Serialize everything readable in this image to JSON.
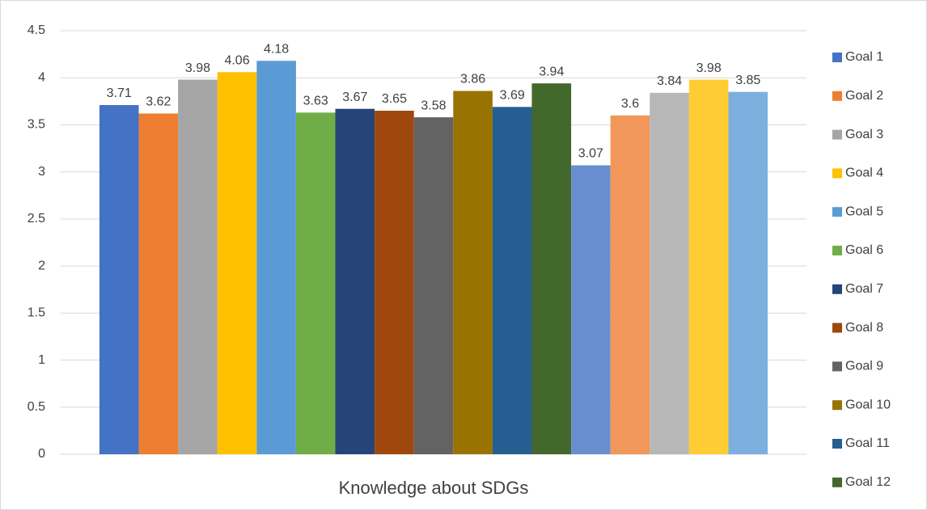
{
  "chart_data": {
    "type": "bar",
    "categories": [
      "Knowledge about SDGs"
    ],
    "series": [
      {
        "name": "Goal 1",
        "color": "#4472c4",
        "values": [
          3.71
        ]
      },
      {
        "name": "Goal 2",
        "color": "#ed7d31",
        "values": [
          3.62
        ]
      },
      {
        "name": "Goal 3",
        "color": "#a5a5a5",
        "values": [
          3.98
        ]
      },
      {
        "name": "Goal 4",
        "color": "#ffc000",
        "values": [
          4.06
        ]
      },
      {
        "name": "Goal 5",
        "color": "#5b9bd5",
        "values": [
          4.18
        ]
      },
      {
        "name": "Goal 6",
        "color": "#70ad47",
        "values": [
          3.63
        ]
      },
      {
        "name": "Goal 7",
        "color": "#264478",
        "values": [
          3.67
        ]
      },
      {
        "name": "Goal 8",
        "color": "#9e480e",
        "values": [
          3.65
        ]
      },
      {
        "name": "Goal 9",
        "color": "#636363",
        "values": [
          3.58
        ]
      },
      {
        "name": "Goal 10",
        "color": "#997300",
        "values": [
          3.86
        ]
      },
      {
        "name": "Goal 11",
        "color": "#255e91",
        "values": [
          3.69
        ]
      },
      {
        "name": "Goal 12",
        "color": "#43682b",
        "values": [
          3.94
        ]
      },
      {
        "name": null,
        "color": "#698ed0",
        "values": [
          3.07
        ]
      },
      {
        "name": null,
        "color": "#f1975a",
        "values": [
          3.6
        ]
      },
      {
        "name": null,
        "color": "#b7b7b7",
        "values": [
          3.84
        ]
      },
      {
        "name": null,
        "color": "#ffcd33",
        "values": [
          3.98
        ]
      },
      {
        "name": null,
        "color": "#7cafdd",
        "values": [
          3.85
        ]
      }
    ],
    "ylim": [
      0,
      4.5
    ],
    "yticks": [
      0,
      0.5,
      1,
      1.5,
      2,
      2.5,
      3,
      3.5,
      4,
      4.5
    ],
    "grid": true,
    "legend": "right"
  }
}
